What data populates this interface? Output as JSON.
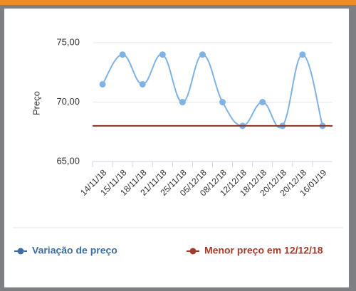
{
  "chart_data": {
    "type": "line",
    "y_label": "Preço",
    "categories": [
      "14/11/18",
      "15/11/18",
      "18/11/18",
      "21/11/18",
      "25/11/18",
      "05/12/18",
      "08/12/18",
      "12/12/18",
      "18/12/18",
      "20/12/18",
      "20/12/18",
      "16/01/19"
    ],
    "series": [
      {
        "name": "Variação de preço",
        "color": "#7fb2e5",
        "legend_color": "#3e6d9f",
        "values": [
          71.5,
          74,
          71.5,
          74,
          70,
          74,
          70,
          68,
          70,
          68,
          74,
          68
        ]
      },
      {
        "name": "Menor preço em 12/12/18",
        "color": "#8b3326",
        "legend_color": "#a33b2c",
        "values": [
          68,
          68,
          68,
          68,
          68,
          68,
          68,
          68,
          68,
          68,
          68,
          68
        ]
      }
    ],
    "ylim": [
      65,
      76.5
    ],
    "yticks": [
      {
        "value": 65,
        "label": "65,00"
      },
      {
        "value": 70,
        "label": "70,00"
      },
      {
        "value": 75,
        "label": "75,00"
      }
    ],
    "grid": true
  }
}
